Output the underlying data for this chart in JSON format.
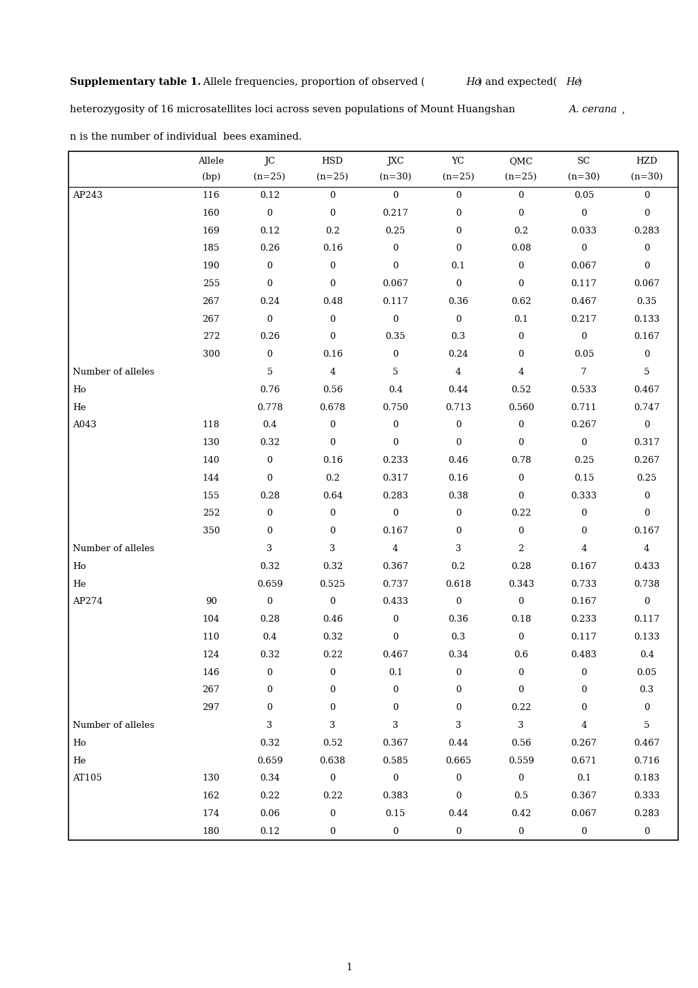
{
  "title_bold": "Supplementary table 1.",
  "title_rest": " Allele frequencies, proportion of observed (",
  "title_Ho": "Ho",
  "title_mid": ") and expected(",
  "title_He": "He",
  "title_end": ")",
  "title_line2a": "heterozygosity of 16 microsatellites loci across seven populations of Mount Huangshan ",
  "title_line2_italic": "A. cerana",
  "title_line2_end": ",",
  "title_line3": "n is the number of individual  bees examined.",
  "headers_row1": [
    "",
    "Allele",
    "JC",
    "HSD",
    "JXC",
    "YC",
    "QMC",
    "SC",
    "HZD"
  ],
  "headers_row2": [
    "",
    "(bp)",
    "(n=25)",
    "(n=25)",
    "(n=30)",
    "(n=25)",
    "(n=25)",
    "(n=30)",
    "(n=30)"
  ],
  "rows": [
    [
      "AP243",
      "116",
      "0.12",
      "0",
      "0",
      "0",
      "0",
      "0.05",
      "0"
    ],
    [
      "",
      "160",
      "0",
      "0",
      "0.217",
      "0",
      "0",
      "0",
      "0"
    ],
    [
      "",
      "169",
      "0.12",
      "0.2",
      "0.25",
      "0",
      "0.2",
      "0.033",
      "0.283"
    ],
    [
      "",
      "185",
      "0.26",
      "0.16",
      "0",
      "0",
      "0.08",
      "0",
      "0"
    ],
    [
      "",
      "190",
      "0",
      "0",
      "0",
      "0.1",
      "0",
      "0.067",
      "0"
    ],
    [
      "",
      "255",
      "0",
      "0",
      "0.067",
      "0",
      "0",
      "0.117",
      "0.067"
    ],
    [
      "",
      "267",
      "0.24",
      "0.48",
      "0.117",
      "0.36",
      "0.62",
      "0.467",
      "0.35"
    ],
    [
      "",
      "267",
      "0",
      "0",
      "0",
      "0",
      "0.1",
      "0.217",
      "0.133"
    ],
    [
      "",
      "272",
      "0.26",
      "0",
      "0.35",
      "0.3",
      "0",
      "0",
      "0.167"
    ],
    [
      "",
      "300",
      "0",
      "0.16",
      "0",
      "0.24",
      "0",
      "0.05",
      "0"
    ],
    [
      "Number of alleles",
      "",
      "5",
      "4",
      "5",
      "4",
      "4",
      "7",
      "5"
    ],
    [
      "Ho",
      "",
      "0.76",
      "0.56",
      "0.4",
      "0.44",
      "0.52",
      "0.533",
      "0.467"
    ],
    [
      "He",
      "",
      "0.778",
      "0.678",
      "0.750",
      "0.713",
      "0.560",
      "0.711",
      "0.747"
    ],
    [
      "A043",
      "118",
      "0.4",
      "0",
      "0",
      "0",
      "0",
      "0.267",
      "0"
    ],
    [
      "",
      "130",
      "0.32",
      "0",
      "0",
      "0",
      "0",
      "0",
      "0.317"
    ],
    [
      "",
      "140",
      "0",
      "0.16",
      "0.233",
      "0.46",
      "0.78",
      "0.25",
      "0.267"
    ],
    [
      "",
      "144",
      "0",
      "0.2",
      "0.317",
      "0.16",
      "0",
      "0.15",
      "0.25"
    ],
    [
      "",
      "155",
      "0.28",
      "0.64",
      "0.283",
      "0.38",
      "0",
      "0.333",
      "0"
    ],
    [
      "",
      "252",
      "0",
      "0",
      "0",
      "0",
      "0.22",
      "0",
      "0"
    ],
    [
      "",
      "350",
      "0",
      "0",
      "0.167",
      "0",
      "0",
      "0",
      "0.167"
    ],
    [
      "Number of alleles",
      "",
      "3",
      "3",
      "4",
      "3",
      "2",
      "4",
      "4"
    ],
    [
      "Ho",
      "",
      "0.32",
      "0.32",
      "0.367",
      "0.2",
      "0.28",
      "0.167",
      "0.433"
    ],
    [
      "He",
      "",
      "0.659",
      "0.525",
      "0.737",
      "0.618",
      "0.343",
      "0.733",
      "0.738"
    ],
    [
      "AP274",
      "90",
      "0",
      "0",
      "0.433",
      "0",
      "0",
      "0.167",
      "0"
    ],
    [
      "",
      "104",
      "0.28",
      "0.46",
      "0",
      "0.36",
      "0.18",
      "0.233",
      "0.117"
    ],
    [
      "",
      "110",
      "0.4",
      "0.32",
      "0",
      "0.3",
      "0",
      "0.117",
      "0.133"
    ],
    [
      "",
      "124",
      "0.32",
      "0.22",
      "0.467",
      "0.34",
      "0.6",
      "0.483",
      "0.4"
    ],
    [
      "",
      "146",
      "0",
      "0",
      "0.1",
      "0",
      "0",
      "0",
      "0.05"
    ],
    [
      "",
      "267",
      "0",
      "0",
      "0",
      "0",
      "0",
      "0",
      "0.3"
    ],
    [
      "",
      "297",
      "0",
      "0",
      "0",
      "0",
      "0.22",
      "0",
      "0"
    ],
    [
      "Number of alleles",
      "",
      "3",
      "3",
      "3",
      "3",
      "3",
      "4",
      "5"
    ],
    [
      "Ho",
      "",
      "0.32",
      "0.52",
      "0.367",
      "0.44",
      "0.56",
      "0.267",
      "0.467"
    ],
    [
      "He",
      "",
      "0.659",
      "0.638",
      "0.585",
      "0.665",
      "0.559",
      "0.671",
      "0.716"
    ],
    [
      "AT105",
      "130",
      "0.34",
      "0",
      "0",
      "0",
      "0",
      "0.1",
      "0.183"
    ],
    [
      "",
      "162",
      "0.22",
      "0.22",
      "0.383",
      "0",
      "0.5",
      "0.367",
      "0.333"
    ],
    [
      "",
      "174",
      "0.06",
      "0",
      "0.15",
      "0.44",
      "0.42",
      "0.067",
      "0.283"
    ],
    [
      "",
      "180",
      "0.12",
      "0",
      "0",
      "0",
      "0",
      "0",
      "0"
    ]
  ],
  "page_number": "1",
  "fig_width": 10.2,
  "fig_height": 14.43,
  "dpi": 100
}
